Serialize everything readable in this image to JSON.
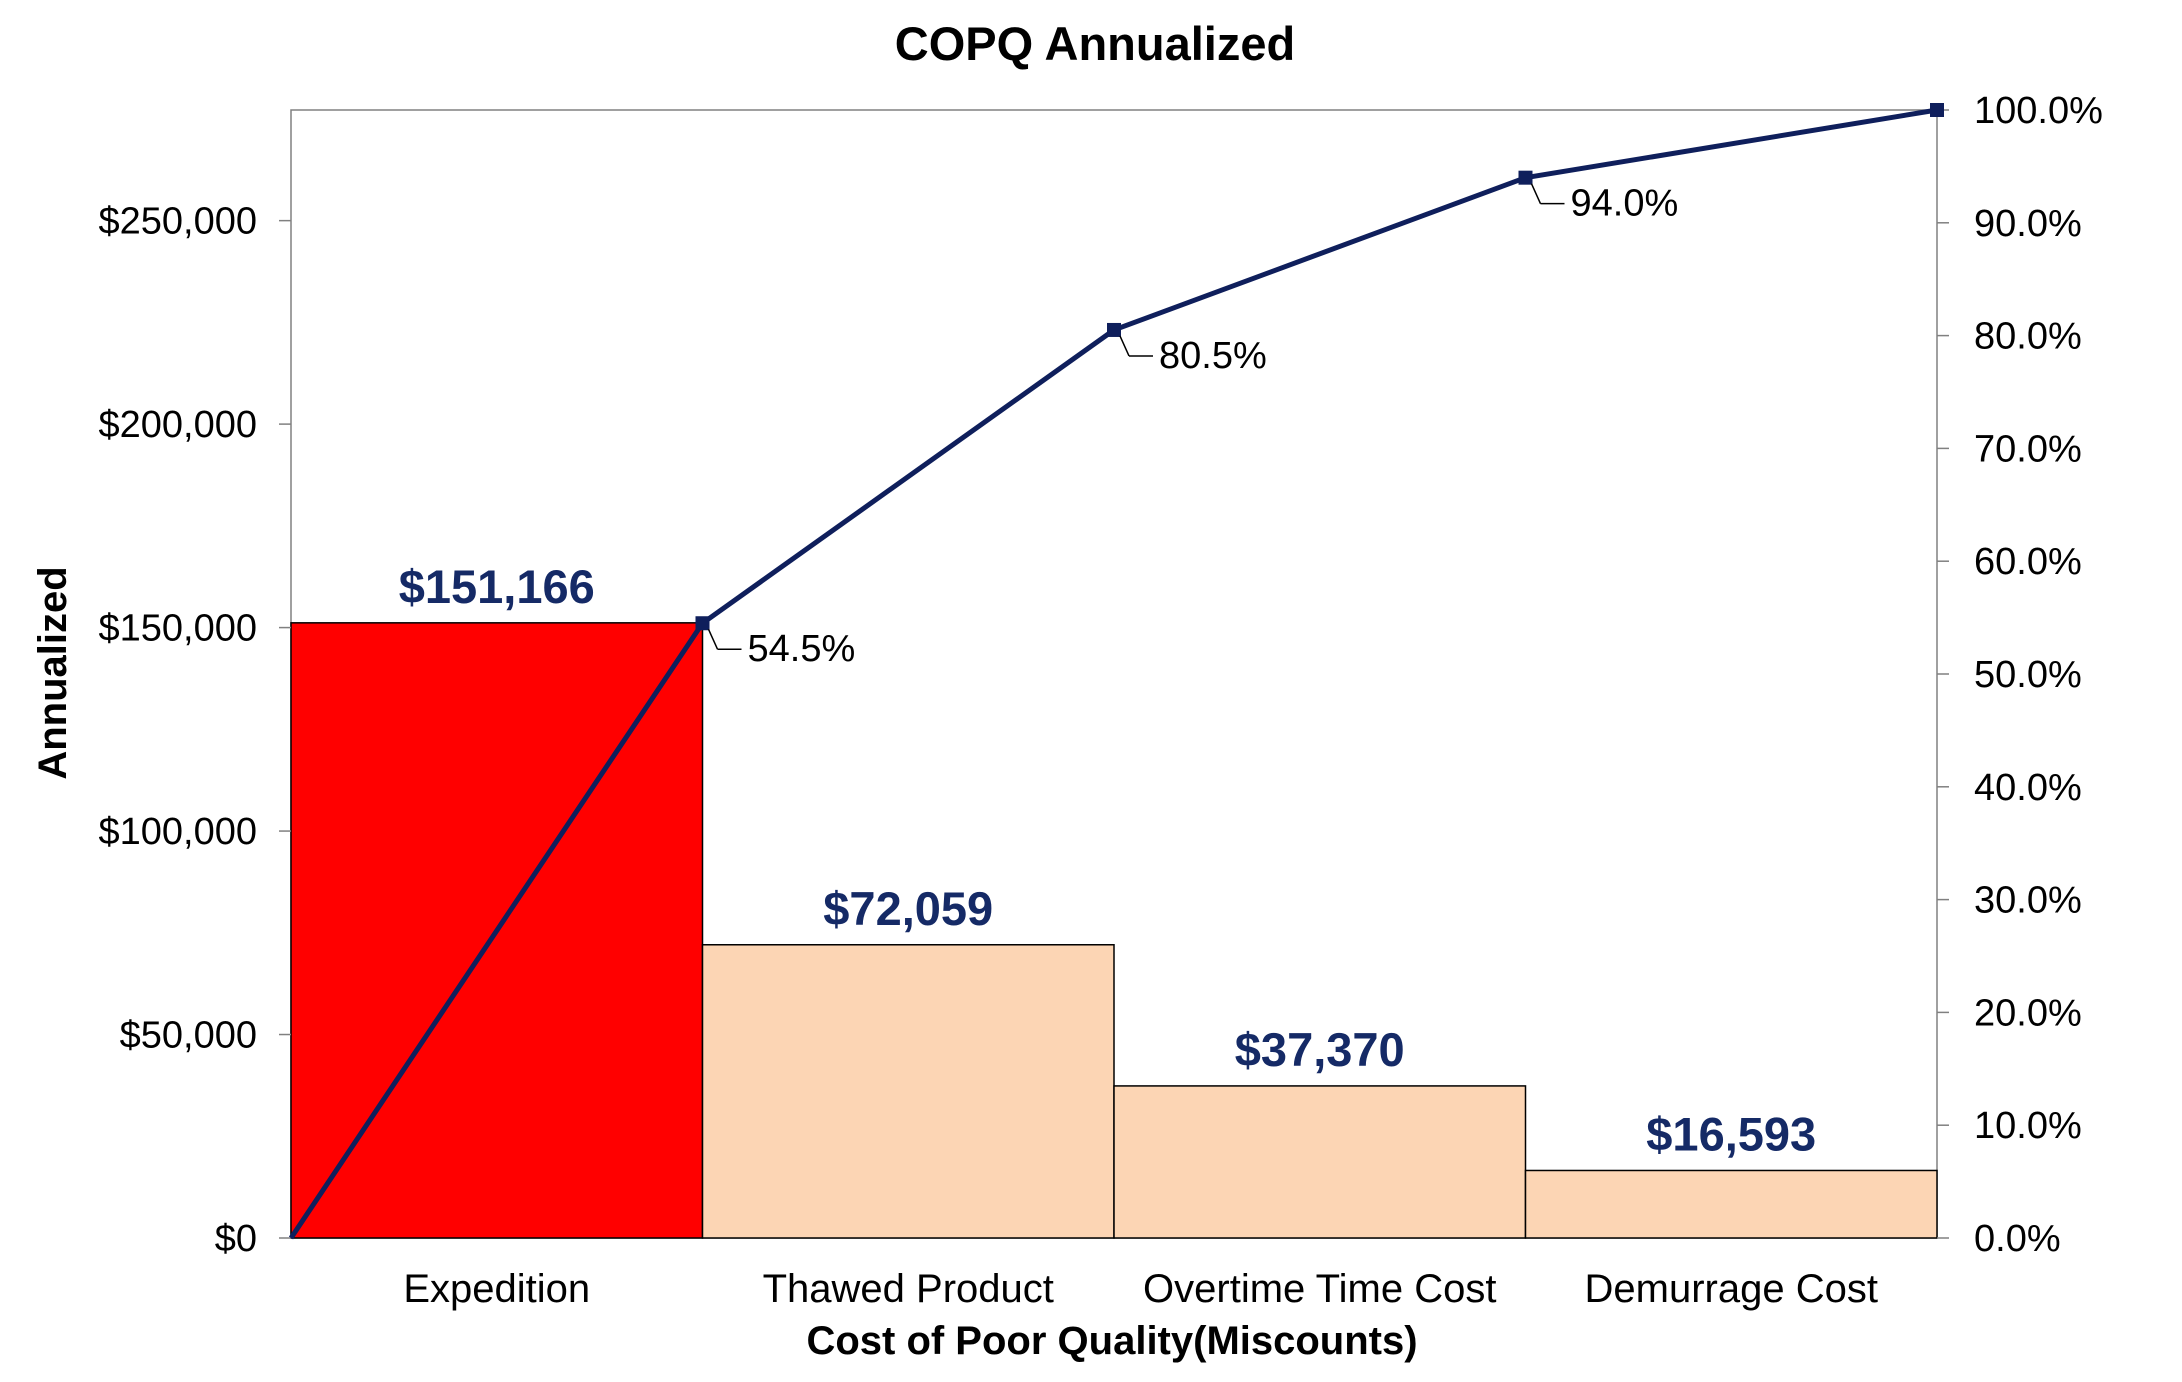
{
  "chart_data": {
    "type": "bar",
    "title": "COPQ Annualized",
    "xlabel": "Cost of Poor Quality(Miscounts)",
    "ylabel": "Annualized",
    "categories": [
      "Expedition",
      "Thawed Product",
      "Overtime Time Cost",
      "Demurrage Cost"
    ],
    "values": [
      151166,
      72059,
      37370,
      16593
    ],
    "value_labels": [
      "$151,166",
      "$72,059",
      "$37,370",
      "$16,593"
    ],
    "ylim": [
      0,
      277188
    ],
    "y_ticks": [
      0,
      50000,
      100000,
      150000,
      200000,
      250000
    ],
    "y_tick_labels": [
      "$0",
      "$50,000",
      "$100,000",
      "$150,000",
      "$200,000",
      "$250,000"
    ],
    "cumulative": {
      "type": "line",
      "x": [
        0,
        1,
        2,
        3,
        4
      ],
      "values": [
        0,
        54.5,
        80.5,
        94.0,
        100.0
      ],
      "labels": [
        "",
        "54.5%",
        "80.5%",
        "94.0%",
        ""
      ],
      "ylim": [
        0,
        100
      ],
      "y_ticks": [
        0,
        10,
        20,
        30,
        40,
        50,
        60,
        70,
        80,
        90,
        100
      ],
      "y_tick_labels": [
        "0.0%",
        "10.0%",
        "20.0%",
        "30.0%",
        "40.0%",
        "50.0%",
        "60.0%",
        "70.0%",
        "80.0%",
        "90.0%",
        "100.0%"
      ]
    },
    "bar_colors": [
      "#ff0000",
      "#fcd5b4",
      "#fcd5b4",
      "#fcd5b4"
    ],
    "line_color": "#0f1f5c",
    "value_label_color": "#152a66",
    "grid": false,
    "legend": "none"
  }
}
